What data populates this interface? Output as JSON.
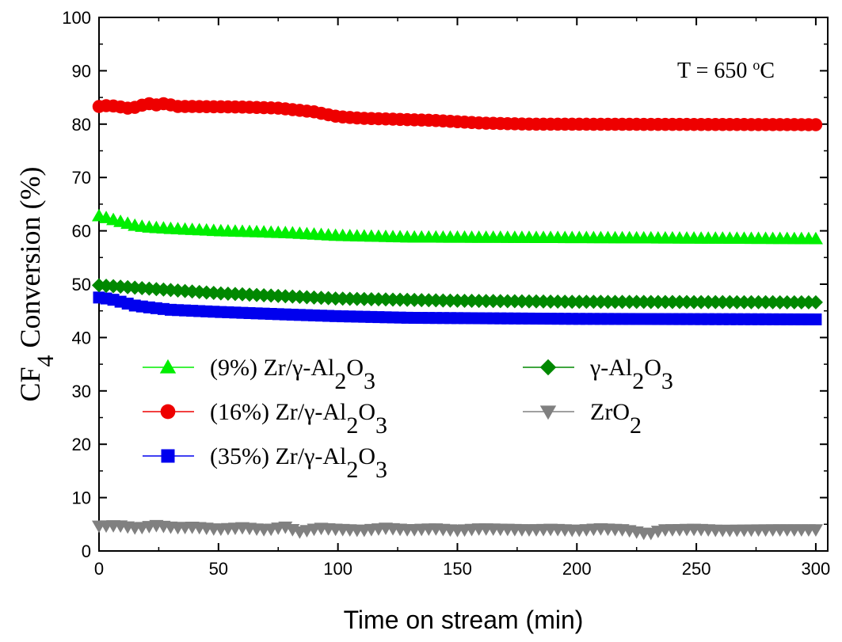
{
  "chart_data": {
    "type": "line",
    "title": "",
    "xlabel": "Time on stream (min)",
    "ylabel": {
      "prefix": "CF",
      "sub": "4",
      "suffix": " Conversion (%)"
    },
    "xlim": [
      0,
      305
    ],
    "ylim": [
      0,
      100
    ],
    "xticks": [
      0,
      50,
      100,
      150,
      200,
      250,
      300
    ],
    "yticks": [
      0,
      10,
      20,
      30,
      40,
      50,
      60,
      70,
      80,
      90,
      100
    ],
    "annotation": {
      "prefix": "T = 650 ",
      "sup": "o",
      "suffix": "C"
    },
    "series": [
      {
        "id": "s9",
        "name": "(9%) Zr/γ-Al2O3",
        "label_parts": [
          {
            "t": "(9%) Zr/γ-Al"
          },
          {
            "t": "2",
            "sub": true
          },
          {
            "t": "O"
          },
          {
            "t": "3",
            "sub": true
          }
        ],
        "color": "#00ee00",
        "marker": "triangle-up",
        "keypoints": [
          [
            0,
            62.8
          ],
          [
            5,
            62.2
          ],
          [
            10,
            61.6
          ],
          [
            15,
            61.0
          ],
          [
            20,
            60.7
          ],
          [
            30,
            60.4
          ],
          [
            50,
            60.0
          ],
          [
            80,
            59.6
          ],
          [
            100,
            59.1
          ],
          [
            130,
            58.8
          ],
          [
            200,
            58.7
          ],
          [
            300,
            58.5
          ]
        ]
      },
      {
        "id": "s16",
        "name": "(16%) Zr/γ-Al2O3",
        "label_parts": [
          {
            "t": "(16%) Zr/γ-Al"
          },
          {
            "t": "2",
            "sub": true
          },
          {
            "t": "O"
          },
          {
            "t": "3",
            "sub": true
          }
        ],
        "color": "#ee0000",
        "marker": "circle",
        "keypoints": [
          [
            0,
            83.3
          ],
          [
            4,
            83.5
          ],
          [
            8,
            83.3
          ],
          [
            12,
            83.0
          ],
          [
            16,
            83.2
          ],
          [
            20,
            83.9
          ],
          [
            24,
            83.6
          ],
          [
            28,
            83.9
          ],
          [
            32,
            83.3
          ],
          [
            40,
            83.3
          ],
          [
            60,
            83.2
          ],
          [
            75,
            83.0
          ],
          [
            90,
            82.3
          ],
          [
            100,
            81.4
          ],
          [
            110,
            81.1
          ],
          [
            140,
            80.7
          ],
          [
            160,
            80.2
          ],
          [
            180,
            80.0
          ],
          [
            300,
            79.9
          ]
        ]
      },
      {
        "id": "s35",
        "name": "(35%) Zr/γ-Al2O3",
        "label_parts": [
          {
            "t": "(35%) Zr/γ-Al"
          },
          {
            "t": "2",
            "sub": true
          },
          {
            "t": "O"
          },
          {
            "t": "3",
            "sub": true
          }
        ],
        "color": "#0000ee",
        "marker": "square",
        "keypoints": [
          [
            0,
            47.5
          ],
          [
            5,
            47.2
          ],
          [
            10,
            46.6
          ],
          [
            15,
            46.0
          ],
          [
            20,
            45.7
          ],
          [
            30,
            45.2
          ],
          [
            50,
            44.8
          ],
          [
            80,
            44.3
          ],
          [
            100,
            44.0
          ],
          [
            130,
            43.7
          ],
          [
            200,
            43.5
          ],
          [
            300,
            43.4
          ]
        ]
      },
      {
        "id": "sal",
        "name": "γ-Al2O3",
        "label_parts": [
          {
            "t": "γ-Al"
          },
          {
            "t": "2",
            "sub": true
          },
          {
            "t": "O"
          },
          {
            "t": "3",
            "sub": true
          }
        ],
        "color": "#008800",
        "marker": "diamond",
        "keypoints": [
          [
            0,
            49.8
          ],
          [
            20,
            49.2
          ],
          [
            50,
            48.3
          ],
          [
            100,
            47.3
          ],
          [
            150,
            46.9
          ],
          [
            200,
            46.7
          ],
          [
            300,
            46.6
          ]
        ]
      },
      {
        "id": "szr",
        "name": "ZrO2",
        "label_parts": [
          {
            "t": "ZrO"
          },
          {
            "t": "2",
            "sub": true
          }
        ],
        "color": "#808080",
        "marker": "triangle-down",
        "keypoints": [
          [
            0,
            4.7
          ],
          [
            8,
            4.8
          ],
          [
            16,
            4.3
          ],
          [
            24,
            4.8
          ],
          [
            32,
            4.4
          ],
          [
            40,
            4.5
          ],
          [
            50,
            4.1
          ],
          [
            60,
            4.4
          ],
          [
            70,
            4.0
          ],
          [
            78,
            4.5
          ],
          [
            84,
            3.6
          ],
          [
            92,
            4.3
          ],
          [
            100,
            4.1
          ],
          [
            110,
            3.9
          ],
          [
            120,
            4.3
          ],
          [
            130,
            4.0
          ],
          [
            140,
            4.2
          ],
          [
            150,
            3.9
          ],
          [
            160,
            4.2
          ],
          [
            170,
            4.1
          ],
          [
            180,
            4.0
          ],
          [
            190,
            4.1
          ],
          [
            200,
            3.9
          ],
          [
            210,
            4.2
          ],
          [
            220,
            4.0
          ],
          [
            230,
            3.2
          ],
          [
            236,
            4.0
          ],
          [
            250,
            4.1
          ],
          [
            260,
            3.9
          ],
          [
            280,
            4.0
          ],
          [
            300,
            4.0
          ]
        ]
      }
    ],
    "sample_step_min": 3,
    "legend": {
      "left": [
        "s9",
        "s16",
        "s35"
      ],
      "right": [
        "sal",
        "szr"
      ],
      "placement": "center-left"
    },
    "grid": false
  }
}
